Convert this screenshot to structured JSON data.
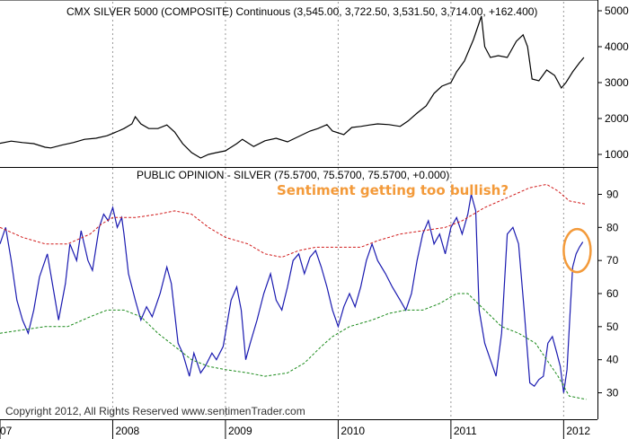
{
  "chart_data": [
    {
      "type": "line",
      "title": "CMX SILVER 5000 (COMPOSITE) Continuous (3,545.00, 3,722.50, 3,531.50, 3,714.00, +162.400)",
      "ylim": [
        650,
        5300
      ],
      "y_ticks": [
        "1000",
        "2000",
        "3000",
        "4000",
        "5000"
      ],
      "x_range": [
        2007.0,
        2012.3
      ],
      "series": [
        {
          "color": "#000000",
          "points": [
            [
              2007.0,
              1310
            ],
            [
              2007.1,
              1370
            ],
            [
              2007.2,
              1330
            ],
            [
              2007.3,
              1300
            ],
            [
              2007.4,
              1200
            ],
            [
              2007.45,
              1180
            ],
            [
              2007.55,
              1260
            ],
            [
              2007.65,
              1330
            ],
            [
              2007.75,
              1420
            ],
            [
              2007.85,
              1450
            ],
            [
              2007.95,
              1520
            ],
            [
              2008.05,
              1650
            ],
            [
              2008.1,
              1720
            ],
            [
              2008.17,
              1850
            ],
            [
              2008.2,
              2050
            ],
            [
              2008.25,
              1850
            ],
            [
              2008.32,
              1720
            ],
            [
              2008.4,
              1720
            ],
            [
              2008.48,
              1820
            ],
            [
              2008.55,
              1620
            ],
            [
              2008.62,
              1300
            ],
            [
              2008.7,
              1050
            ],
            [
              2008.78,
              900
            ],
            [
              2008.85,
              1000
            ],
            [
              2008.92,
              1050
            ],
            [
              2009.0,
              1100
            ],
            [
              2009.1,
              1300
            ],
            [
              2009.15,
              1420
            ],
            [
              2009.25,
              1220
            ],
            [
              2009.35,
              1380
            ],
            [
              2009.45,
              1450
            ],
            [
              2009.55,
              1350
            ],
            [
              2009.65,
              1500
            ],
            [
              2009.75,
              1650
            ],
            [
              2009.82,
              1720
            ],
            [
              2009.9,
              1830
            ],
            [
              2009.95,
              1650
            ],
            [
              2010.05,
              1550
            ],
            [
              2010.12,
              1750
            ],
            [
              2010.2,
              1780
            ],
            [
              2010.28,
              1820
            ],
            [
              2010.35,
              1850
            ],
            [
              2010.45,
              1830
            ],
            [
              2010.55,
              1780
            ],
            [
              2010.62,
              1930
            ],
            [
              2010.7,
              2150
            ],
            [
              2010.78,
              2350
            ],
            [
              2010.85,
              2700
            ],
            [
              2010.92,
              2900
            ],
            [
              2011.0,
              3000
            ],
            [
              2011.05,
              3300
            ],
            [
              2011.12,
              3600
            ],
            [
              2011.2,
              4200
            ],
            [
              2011.27,
              4850
            ],
            [
              2011.3,
              4000
            ],
            [
              2011.35,
              3700
            ],
            [
              2011.42,
              3750
            ],
            [
              2011.5,
              3700
            ],
            [
              2011.58,
              4150
            ],
            [
              2011.64,
              4330
            ],
            [
              2011.68,
              4000
            ],
            [
              2011.72,
              3100
            ],
            [
              2011.78,
              3050
            ],
            [
              2011.85,
              3350
            ],
            [
              2011.92,
              3200
            ],
            [
              2011.98,
              2850
            ],
            [
              2012.02,
              3000
            ],
            [
              2012.08,
              3300
            ],
            [
              2012.14,
              3550
            ],
            [
              2012.18,
              3700
            ]
          ]
        }
      ]
    },
    {
      "type": "line",
      "title": "PUBLIC OPINION - SILVER (75.5700, 75.5700, 75.5700, +0.000)",
      "ylim": [
        22,
        98
      ],
      "y_ticks": [
        "30",
        "40",
        "50",
        "60",
        "70",
        "80",
        "90"
      ],
      "x_ticks": [
        "07",
        "2008",
        "2009",
        "2010",
        "2011",
        "2012"
      ],
      "x_tick_positions": [
        2007.0,
        2008.0,
        2009.0,
        2010.0,
        2011.0,
        2012.0
      ],
      "x_range": [
        2007.0,
        2012.3
      ],
      "series": [
        {
          "color": "#1a1ab0",
          "points": [
            [
              2007.0,
              75
            ],
            [
              2007.05,
              80
            ],
            [
              2007.1,
              70
            ],
            [
              2007.15,
              58
            ],
            [
              2007.2,
              52
            ],
            [
              2007.25,
              48
            ],
            [
              2007.3,
              55
            ],
            [
              2007.35,
              65
            ],
            [
              2007.42,
              72
            ],
            [
              2007.48,
              60
            ],
            [
              2007.52,
              52
            ],
            [
              2007.58,
              63
            ],
            [
              2007.62,
              75
            ],
            [
              2007.68,
              70
            ],
            [
              2007.72,
              79
            ],
            [
              2007.78,
              70
            ],
            [
              2007.82,
              67
            ],
            [
              2007.88,
              80
            ],
            [
              2007.92,
              84
            ],
            [
              2007.96,
              82
            ],
            [
              2008.0,
              86
            ],
            [
              2008.04,
              80
            ],
            [
              2008.08,
              83
            ],
            [
              2008.1,
              78
            ],
            [
              2008.14,
              66
            ],
            [
              2008.2,
              58
            ],
            [
              2008.25,
              52
            ],
            [
              2008.3,
              56
            ],
            [
              2008.35,
              53
            ],
            [
              2008.42,
              60
            ],
            [
              2008.48,
              68
            ],
            [
              2008.52,
              63
            ],
            [
              2008.58,
              45
            ],
            [
              2008.62,
              42
            ],
            [
              2008.68,
              35
            ],
            [
              2008.72,
              42
            ],
            [
              2008.78,
              36
            ],
            [
              2008.82,
              38
            ],
            [
              2008.88,
              42
            ],
            [
              2008.92,
              40
            ],
            [
              2008.98,
              44
            ],
            [
              2009.05,
              58
            ],
            [
              2009.1,
              62
            ],
            [
              2009.14,
              55
            ],
            [
              2009.18,
              40
            ],
            [
              2009.22,
              45
            ],
            [
              2009.28,
              52
            ],
            [
              2009.34,
              60
            ],
            [
              2009.4,
              66
            ],
            [
              2009.45,
              58
            ],
            [
              2009.5,
              55
            ],
            [
              2009.55,
              62
            ],
            [
              2009.6,
              70
            ],
            [
              2009.65,
              72
            ],
            [
              2009.7,
              66
            ],
            [
              2009.75,
              71
            ],
            [
              2009.8,
              73
            ],
            [
              2009.85,
              68
            ],
            [
              2009.9,
              62
            ],
            [
              2009.95,
              55
            ],
            [
              2010.0,
              50
            ],
            [
              2010.05,
              56
            ],
            [
              2010.1,
              60
            ],
            [
              2010.15,
              56
            ],
            [
              2010.2,
              62
            ],
            [
              2010.25,
              70
            ],
            [
              2010.3,
              75
            ],
            [
              2010.35,
              70
            ],
            [
              2010.42,
              66
            ],
            [
              2010.48,
              62
            ],
            [
              2010.55,
              58
            ],
            [
              2010.6,
              55
            ],
            [
              2010.65,
              60
            ],
            [
              2010.7,
              70
            ],
            [
              2010.75,
              78
            ],
            [
              2010.8,
              82
            ],
            [
              2010.85,
              75
            ],
            [
              2010.9,
              78
            ],
            [
              2010.95,
              72
            ],
            [
              2011.0,
              80
            ],
            [
              2011.05,
              83
            ],
            [
              2011.1,
              78
            ],
            [
              2011.15,
              84
            ],
            [
              2011.18,
              90
            ],
            [
              2011.22,
              85
            ],
            [
              2011.25,
              55
            ],
            [
              2011.3,
              45
            ],
            [
              2011.35,
              40
            ],
            [
              2011.4,
              35
            ],
            [
              2011.45,
              48
            ],
            [
              2011.5,
              78
            ],
            [
              2011.55,
              80
            ],
            [
              2011.6,
              75
            ],
            [
              2011.65,
              55
            ],
            [
              2011.7,
              33
            ],
            [
              2011.74,
              32
            ],
            [
              2011.78,
              34
            ],
            [
              2011.82,
              35
            ],
            [
              2011.86,
              45
            ],
            [
              2011.9,
              47
            ],
            [
              2011.94,
              42
            ],
            [
              2011.97,
              38
            ],
            [
              2012.0,
              30
            ],
            [
              2012.03,
              37
            ],
            [
              2012.06,
              56
            ],
            [
              2012.08,
              68
            ],
            [
              2012.11,
              72
            ],
            [
              2012.14,
              74
            ],
            [
              2012.17,
              75.6
            ]
          ]
        },
        {
          "color": "#d11b1b",
          "dashed": true,
          "points": [
            [
              2007.0,
              80
            ],
            [
              2007.2,
              77
            ],
            [
              2007.4,
              75
            ],
            [
              2007.6,
              75
            ],
            [
              2007.8,
              78
            ],
            [
              2007.9,
              81
            ],
            [
              2008.0,
              83
            ],
            [
              2008.2,
              83
            ],
            [
              2008.4,
              84
            ],
            [
              2008.55,
              85
            ],
            [
              2008.7,
              84
            ],
            [
              2008.85,
              80
            ],
            [
              2009.0,
              77
            ],
            [
              2009.2,
              75
            ],
            [
              2009.35,
              72
            ],
            [
              2009.5,
              71
            ],
            [
              2009.65,
              73
            ],
            [
              2009.8,
              74
            ],
            [
              2010.0,
              74
            ],
            [
              2010.2,
              74
            ],
            [
              2010.35,
              76
            ],
            [
              2010.55,
              78
            ],
            [
              2010.75,
              79
            ],
            [
              2010.95,
              80
            ],
            [
              2011.1,
              82
            ],
            [
              2011.3,
              86
            ],
            [
              2011.5,
              89
            ],
            [
              2011.7,
              92
            ],
            [
              2011.85,
              93
            ],
            [
              2011.95,
              91
            ],
            [
              2012.05,
              88
            ],
            [
              2012.2,
              87
            ]
          ]
        },
        {
          "color": "#1a8a1a",
          "dashed": true,
          "points": [
            [
              2007.0,
              48
            ],
            [
              2007.2,
              49
            ],
            [
              2007.4,
              50
            ],
            [
              2007.6,
              50
            ],
            [
              2007.8,
              53
            ],
            [
              2007.95,
              55
            ],
            [
              2008.1,
              55
            ],
            [
              2008.25,
              53
            ],
            [
              2008.4,
              48
            ],
            [
              2008.55,
              44
            ],
            [
              2008.7,
              40
            ],
            [
              2008.85,
              38
            ],
            [
              2009.0,
              37
            ],
            [
              2009.2,
              36
            ],
            [
              2009.35,
              35
            ],
            [
              2009.55,
              36
            ],
            [
              2009.7,
              39
            ],
            [
              2009.85,
              44
            ],
            [
              2009.95,
              47
            ],
            [
              2010.1,
              50
            ],
            [
              2010.3,
              52
            ],
            [
              2010.45,
              54
            ],
            [
              2010.6,
              55
            ],
            [
              2010.75,
              55
            ],
            [
              2010.9,
              57
            ],
            [
              2011.05,
              60
            ],
            [
              2011.15,
              60
            ],
            [
              2011.3,
              55
            ],
            [
              2011.45,
              50
            ],
            [
              2011.6,
              48
            ],
            [
              2011.75,
              45
            ],
            [
              2011.85,
              40
            ],
            [
              2011.95,
              35
            ],
            [
              2012.05,
              29
            ],
            [
              2012.2,
              28
            ]
          ]
        }
      ],
      "annotation": "Sentiment getting too bullish?",
      "annotation_color": "#f39a3a",
      "circle_marker": {
        "x": 2012.12,
        "y": 73,
        "color": "#f39a3a"
      }
    }
  ],
  "copyright": "Copyright 2012, All Rights Reserved  www.sentimenTrader.com"
}
